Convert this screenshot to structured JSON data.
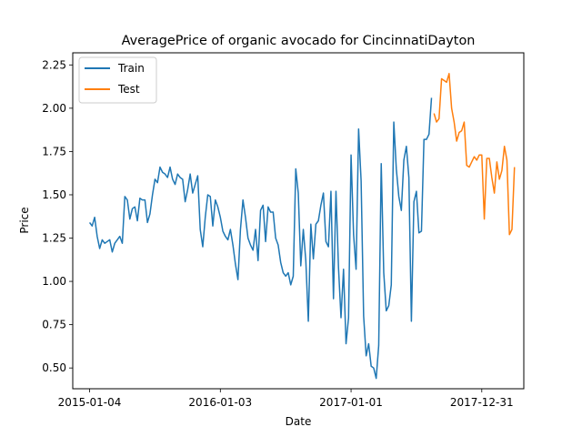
{
  "chart_data": {
    "type": "line",
    "title": "AveragePrice of organic avocado for CincinnatiDayton",
    "xlabel": "Date",
    "ylabel": "Price",
    "x_ticks": [
      "2015-01-04",
      "2016-01-03",
      "2017-01-01",
      "2017-12-31"
    ],
    "y_ticks": [
      "0.50",
      "0.75",
      "1.00",
      "1.25",
      "1.50",
      "1.75",
      "2.00",
      "2.25"
    ],
    "xlim": [
      "2014-11-18",
      "2018-04-27"
    ],
    "ylim": [
      0.38,
      2.32
    ],
    "grid": false,
    "legend_position": "top-left",
    "series": [
      {
        "name": "Train",
        "color": "#1f77b4",
        "values": [
          1.34,
          1.32,
          1.37,
          1.26,
          1.19,
          1.24,
          1.22,
          1.23,
          1.24,
          1.17,
          1.22,
          1.24,
          1.26,
          1.22,
          1.49,
          1.47,
          1.36,
          1.42,
          1.43,
          1.35,
          1.48,
          1.47,
          1.47,
          1.34,
          1.39,
          1.5,
          1.59,
          1.57,
          1.66,
          1.63,
          1.62,
          1.6,
          1.66,
          1.59,
          1.56,
          1.62,
          1.6,
          1.59,
          1.46,
          1.53,
          1.62,
          1.51,
          1.56,
          1.61,
          1.3,
          1.2,
          1.37,
          1.5,
          1.49,
          1.32,
          1.47,
          1.43,
          1.37,
          1.29,
          1.26,
          1.24,
          1.3,
          1.21,
          1.1,
          1.01,
          1.3,
          1.47,
          1.37,
          1.25,
          1.21,
          1.18,
          1.3,
          1.12,
          1.41,
          1.44,
          1.23,
          1.43,
          1.4,
          1.4,
          1.25,
          1.21,
          1.11,
          1.05,
          1.03,
          1.05,
          0.98,
          1.03,
          1.65,
          1.51,
          1.09,
          1.3,
          1.12,
          0.77,
          1.33,
          1.13,
          1.33,
          1.35,
          1.44,
          1.51,
          1.23,
          1.2,
          1.52,
          0.9,
          1.52,
          1.08,
          0.79,
          1.07,
          0.64,
          0.79,
          1.73,
          1.27,
          1.07,
          1.88,
          1.58,
          0.8,
          0.57,
          0.64,
          0.51,
          0.5,
          0.44,
          0.63,
          1.68,
          1.05,
          0.83,
          0.86,
          0.98,
          1.92,
          1.65,
          1.49,
          1.41,
          1.7,
          1.78,
          1.6,
          0.77,
          1.46,
          1.52,
          1.28,
          1.29,
          1.82,
          1.82,
          1.85,
          2.06
        ]
      },
      {
        "name": "Test",
        "color": "#ff7f0e",
        "values": [
          1.97,
          1.92,
          1.94,
          2.17,
          2.16,
          2.15,
          2.2,
          2.0,
          1.92,
          1.81,
          1.86,
          1.87,
          1.92,
          1.67,
          1.66,
          1.69,
          1.72,
          1.7,
          1.73,
          1.73,
          1.36,
          1.71,
          1.71,
          1.6,
          1.51,
          1.69,
          1.59,
          1.64,
          1.78,
          1.7,
          1.27,
          1.3,
          1.66
        ]
      }
    ]
  }
}
